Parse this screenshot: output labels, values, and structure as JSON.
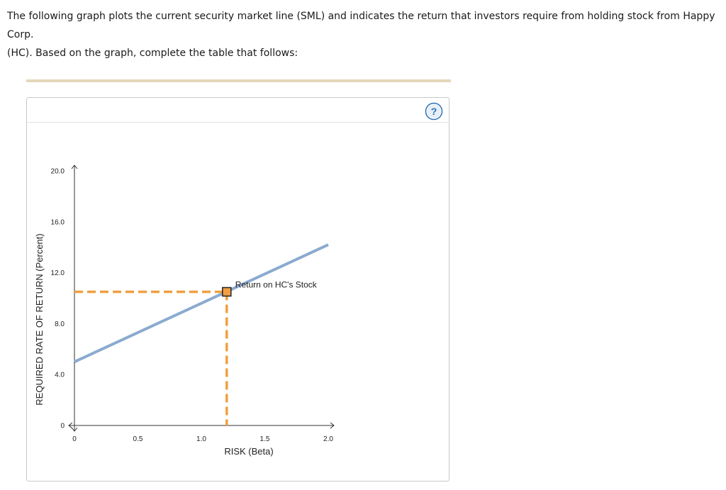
{
  "question": {
    "line1": "The following graph plots the current security market line (SML) and indicates the return that investors require from holding stock from Happy Corp.",
    "line2": "(HC). Based on the graph, complete the table that follows:"
  },
  "help_icon": {
    "glyph": "?",
    "color": "#2e6fb5"
  },
  "colors": {
    "sml_line": "#8aaad0",
    "dashed_guides": "#f0a040",
    "marker_fill": "#f0a040",
    "marker_border": "#222222",
    "divider": "#e3d8ba"
  },
  "chart_data": {
    "type": "line",
    "xlabel": "RISK (Beta)",
    "ylabel": "REQUIRED RATE OF RETURN (Percent)",
    "xlim": [
      0,
      2.0
    ],
    "ylim": [
      0,
      20.0
    ],
    "x_ticks": [
      0,
      0.5,
      1.0,
      1.5,
      2.0
    ],
    "x_tick_labels": [
      "0",
      "0.5",
      "1.0",
      "1.5",
      "2.0"
    ],
    "y_ticks": [
      0,
      4.0,
      8.0,
      12.0,
      16.0,
      20.0
    ],
    "y_tick_labels": [
      "0",
      "4.0",
      "8.0",
      "12.0",
      "16.0",
      "20.0"
    ],
    "series": [
      {
        "x": [
          0,
          2.0
        ],
        "y": [
          5.0,
          14.2
        ]
      }
    ],
    "points": [
      {
        "label": "Return on HC's Stock",
        "x": 1.2,
        "y": 10.5
      }
    ],
    "grid": false
  }
}
